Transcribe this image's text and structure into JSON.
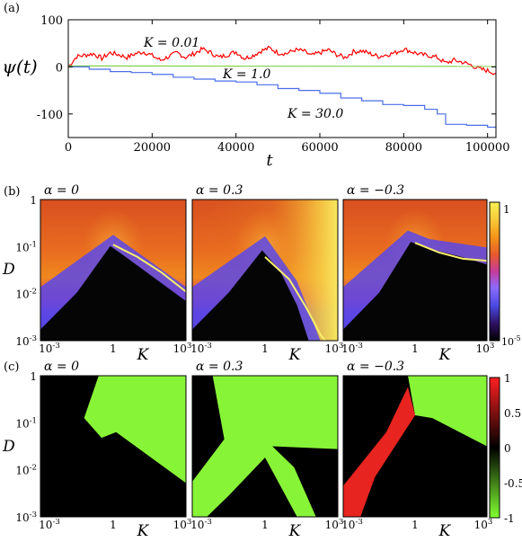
{
  "chart_data": [
    {
      "type": "line",
      "panel_label": "(a)",
      "ylabel": "ψ(t)",
      "xlabel": "t",
      "xlim": [
        0,
        102000
      ],
      "ylim": [
        -150,
        100
      ],
      "xticks": [
        0,
        20000,
        40000,
        60000,
        80000,
        100000
      ],
      "xtick_labels": [
        "0",
        "20000",
        "40000",
        "60000",
        "80000",
        "100000"
      ],
      "yticks": [
        100,
        0,
        -100
      ],
      "ytick_labels": [
        "100",
        "0",
        "-100"
      ],
      "series": [
        {
          "name": "K = 0.01",
          "color": "#ff0000",
          "x": [
            0,
            2000,
            4000,
            6000,
            8000,
            10000,
            12000,
            14000,
            16000,
            18000,
            20000,
            22000,
            24000,
            26000,
            28000,
            30000,
            32000,
            34000,
            36000,
            38000,
            40000,
            42000,
            44000,
            46000,
            48000,
            50000,
            52000,
            54000,
            56000,
            58000,
            60000,
            62000,
            64000,
            66000,
            68000,
            70000,
            72000,
            74000,
            76000,
            78000,
            80000,
            82000,
            84000,
            86000,
            88000,
            90000,
            92000,
            94000,
            96000,
            98000,
            100000,
            102000
          ],
          "y": [
            0,
            22,
            25,
            28,
            18,
            30,
            26,
            20,
            28,
            32,
            24,
            14,
            22,
            30,
            20,
            28,
            38,
            30,
            20,
            26,
            32,
            18,
            24,
            34,
            40,
            30,
            28,
            36,
            34,
            24,
            30,
            36,
            26,
            20,
            32,
            34,
            28,
            22,
            26,
            30,
            38,
            32,
            26,
            24,
            20,
            8,
            14,
            10,
            4,
            -4,
            -8,
            -14
          ]
        },
        {
          "name": "K = 1.0",
          "color": "#7fd04a",
          "x": [
            0,
            102000
          ],
          "y": [
            2,
            1
          ]
        },
        {
          "name": "K = 30.0",
          "color": "#4a6ee8",
          "x": [
            0,
            5000,
            10000,
            15000,
            20000,
            25000,
            30000,
            35000,
            40000,
            45000,
            50000,
            55000,
            60000,
            65000,
            70000,
            75000,
            80000,
            85000,
            88000,
            90000,
            95000,
            100000,
            102000
          ],
          "y": [
            0,
            -5,
            -10,
            -12,
            -16,
            -22,
            -26,
            -30,
            -32,
            -38,
            -46,
            -50,
            -56,
            -66,
            -72,
            -80,
            -82,
            -90,
            -100,
            -122,
            -124,
            -128,
            -130
          ]
        }
      ]
    },
    {
      "type": "heatmap",
      "panel_label": "(b)",
      "colorbar": {
        "type": "log",
        "min": 1e-05,
        "max": 1,
        "tick_labels": [
          "1",
          "10-5"
        ],
        "colors": [
          "#000000",
          "#2c1060",
          "#4a48e0",
          "#8a6cff",
          "#c83c9c",
          "#e65a2c",
          "#f59418",
          "#f8cc3c",
          "#f8f050"
        ]
      },
      "xlabel": "K",
      "ylabel": "D",
      "x_scale": "log",
      "y_scale": "log",
      "xlim": [
        0.001,
        1000
      ],
      "ylim": [
        0.001,
        1
      ],
      "xtick_labels": [
        "10-3",
        "1",
        "103"
      ],
      "ytick_labels": [
        "1",
        "10-1",
        "10-2",
        "10-3"
      ],
      "subplots": [
        {
          "title": "α = 0",
          "alpha": 0,
          "curve_color": "#f8f06a",
          "curve": [
            [
              1,
              0.11
            ],
            [
              10,
              0.06
            ],
            [
              100,
              0.028
            ],
            [
              1000,
              0.011
            ]
          ]
        },
        {
          "title": "α = 0.3",
          "alpha": 0.3,
          "curve_color": "#f8f06a",
          "curve": [
            [
              1,
              0.06
            ],
            [
              10,
              0.02
            ],
            [
              50,
              0.005
            ],
            [
              200,
              0.0013
            ],
            [
              300,
              0.001
            ]
          ]
        },
        {
          "title": "α = −0.3",
          "alpha": -0.3,
          "curve_color": "#f8f06a",
          "curve": [
            [
              1,
              0.12
            ],
            [
              10,
              0.075
            ],
            [
              100,
              0.055
            ],
            [
              1000,
              0.05
            ]
          ]
        }
      ]
    },
    {
      "type": "heatmap",
      "panel_label": "(c)",
      "colorbar": {
        "type": "linear",
        "min": -1,
        "max": 1,
        "ticks": [
          1,
          0.5,
          0,
          -0.5,
          -1
        ],
        "tick_labels": [
          "1",
          "0.5",
          "0",
          "-0.5",
          "-1"
        ],
        "colors": [
          "#80ff30",
          "#000000",
          "#ff2020"
        ]
      },
      "xlabel": "K",
      "ylabel": "D",
      "x_scale": "log",
      "y_scale": "log",
      "xlim": [
        0.001,
        1000
      ],
      "ylim": [
        0.001,
        1
      ],
      "xtick_labels": [
        "10-3",
        "1",
        "103"
      ],
      "ytick_labels": [
        "1",
        "10-1",
        "10-2",
        "10-3"
      ],
      "subplots": [
        {
          "title": "α = 0",
          "alpha": 0
        },
        {
          "title": "α = 0.3",
          "alpha": 0.3
        },
        {
          "title": "α = −0.3",
          "alpha": -0.3
        }
      ]
    }
  ]
}
